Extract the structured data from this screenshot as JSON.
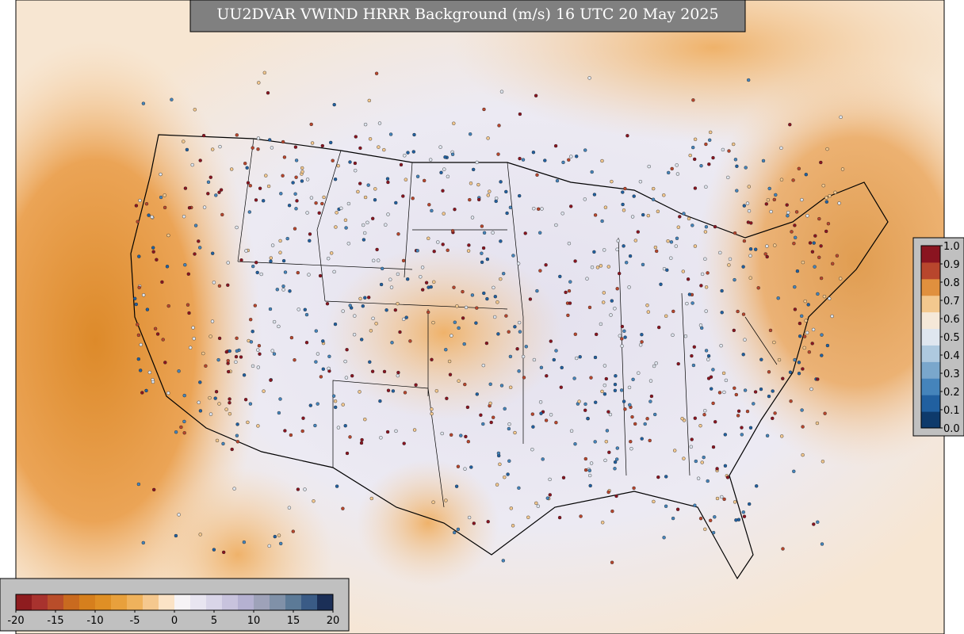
{
  "map": {
    "title": "UU2DVAR VWIND HRRR Background (m/s) 16 UTC 20 May 2025",
    "bottom_colorbar": {
      "lim": [
        -20,
        20
      ],
      "ticks": [
        -20,
        -15,
        -10,
        -5,
        0,
        5,
        10,
        15,
        20
      ],
      "colors": [
        "#8e1c1f",
        "#a8322e",
        "#b94d2a",
        "#c96a1f",
        "#d67f1d",
        "#df8f25",
        "#e8a03c",
        "#efb25c",
        "#f5c88e",
        "#fbe3c6",
        "#f6f3f6",
        "#e8e5f0",
        "#d9d5e8",
        "#c8c3dd",
        "#b5b1d1",
        "#9ea2b9",
        "#8091a8",
        "#5c7a97",
        "#3a5b86",
        "#1b2f57"
      ]
    },
    "right_colorbar": {
      "lim": [
        0,
        1
      ],
      "ticks": [
        {
          "value": 0,
          "label": "0.0"
        },
        0.1,
        0.2,
        0.3,
        0.4,
        0.5,
        0.6,
        0.7,
        0.8,
        0.9,
        {
          "value": 1,
          "label": "1.0"
        }
      ],
      "colors": [
        "#0e3a6b",
        "#2160a0",
        "#4584bb",
        "#7aa7cc",
        "#aec9df",
        "#dfe6ef",
        "#f5e8d8",
        "#f3c88e",
        "#e0903e",
        "#b8462d",
        "#8a1420"
      ]
    }
  }
}
